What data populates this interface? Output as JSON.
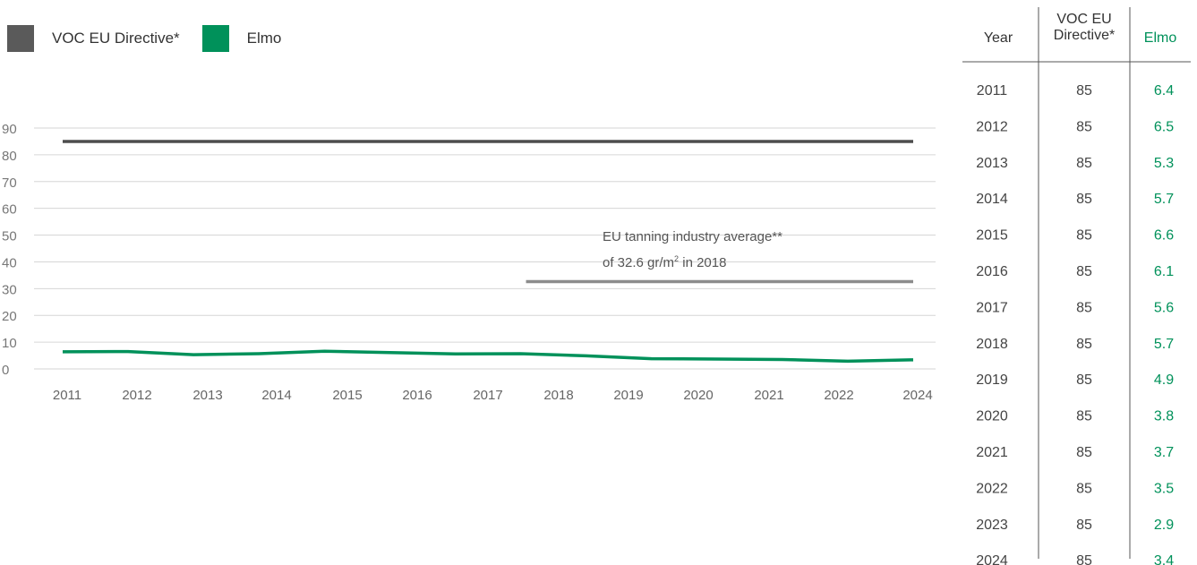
{
  "legend": {
    "items": [
      {
        "label": "VOC EU Directive*",
        "color": "#5a5a5a"
      },
      {
        "label": "Elmo",
        "color": "#00915a"
      }
    ]
  },
  "chart_data": {
    "type": "line",
    "x": [
      "2011",
      "2012",
      "2013",
      "2014",
      "2015",
      "2016",
      "2017",
      "2018",
      "2019",
      "2020",
      "2021",
      "2022",
      "2023",
      "2024"
    ],
    "x_tick_labels": [
      "2011",
      "2012",
      "2013",
      "2014",
      "2015",
      "2016",
      "2017",
      "2018",
      "2019",
      "2020",
      "2021",
      "2022",
      "2024"
    ],
    "y_ticks": [
      0,
      10,
      20,
      30,
      40,
      50,
      60,
      70,
      80,
      90
    ],
    "ylim": [
      0,
      90
    ],
    "grid": true,
    "legend_position": "top-left",
    "series": [
      {
        "name": "VOC EU Directive*",
        "color": "#4d4d4d",
        "values": [
          85,
          85,
          85,
          85,
          85,
          85,
          85,
          85,
          85,
          85,
          85,
          85,
          85,
          85
        ]
      },
      {
        "name": "Elmo",
        "color": "#00915a",
        "values": [
          6.4,
          6.5,
          5.3,
          5.7,
          6.6,
          6.1,
          5.6,
          5.7,
          4.9,
          3.8,
          3.7,
          3.5,
          2.9,
          3.4
        ]
      }
    ],
    "reference_line": {
      "value": 32.6,
      "from": "2018",
      "to": "2024",
      "color": "#8c8c8c"
    },
    "annotation": {
      "line1": "EU tanning industry average**",
      "line2_prefix": "of 32.6 gr/m",
      "line2_sup": "2",
      "line2_suffix": " in 2018"
    }
  },
  "table": {
    "headers": {
      "year": "Year",
      "voc_line1": "VOC EU",
      "voc_line2": "Directive*",
      "elmo": "Elmo"
    },
    "rows": [
      {
        "year": "2011",
        "voc": "85",
        "elmo": "6.4"
      },
      {
        "year": "2012",
        "voc": "85",
        "elmo": "6.5"
      },
      {
        "year": "2013",
        "voc": "85",
        "elmo": "5.3"
      },
      {
        "year": "2014",
        "voc": "85",
        "elmo": "5.7"
      },
      {
        "year": "2015",
        "voc": "85",
        "elmo": "6.6"
      },
      {
        "year": "2016",
        "voc": "85",
        "elmo": "6.1"
      },
      {
        "year": "2017",
        "voc": "85",
        "elmo": "5.6"
      },
      {
        "year": "2018",
        "voc": "85",
        "elmo": "5.7"
      },
      {
        "year": "2019",
        "voc": "85",
        "elmo": "4.9"
      },
      {
        "year": "2020",
        "voc": "85",
        "elmo": "3.8"
      },
      {
        "year": "2021",
        "voc": "85",
        "elmo": "3.7"
      },
      {
        "year": "2022",
        "voc": "85",
        "elmo": "3.5"
      },
      {
        "year": "2023",
        "voc": "85",
        "elmo": "2.9"
      },
      {
        "year": "2024",
        "voc": "85",
        "elmo": "3.4"
      }
    ],
    "elmo_color": "#00915a"
  }
}
